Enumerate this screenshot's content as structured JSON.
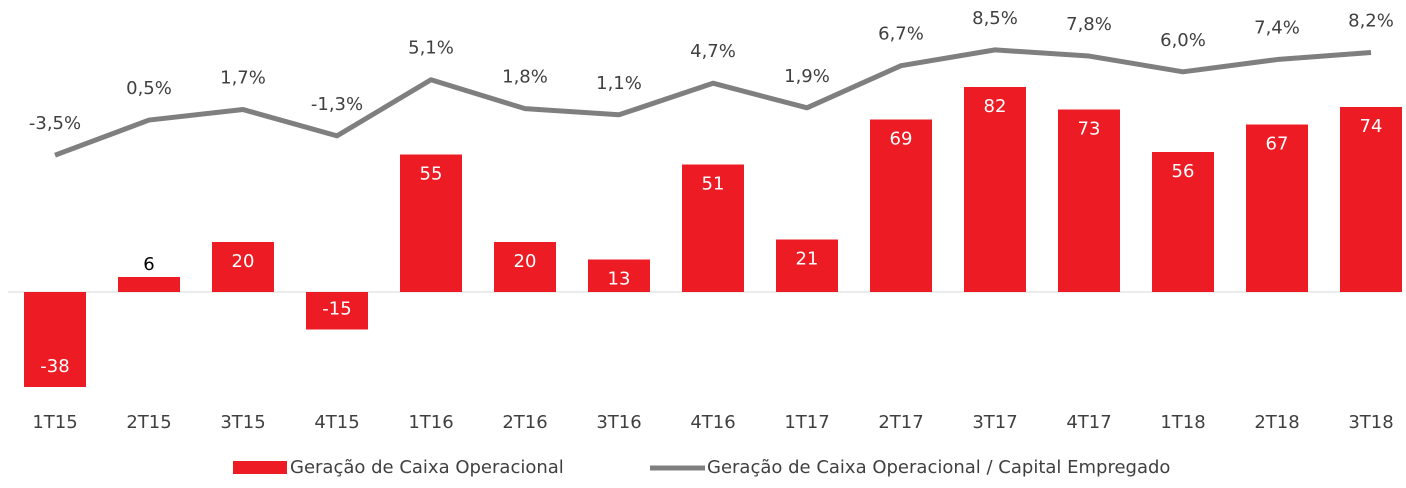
{
  "chart_data": {
    "type": "bar_line",
    "categories": [
      "1T15",
      "2T15",
      "3T15",
      "4T15",
      "1T16",
      "2T16",
      "3T16",
      "4T16",
      "1T17",
      "2T17",
      "3T17",
      "4T17",
      "1T18",
      "2T18",
      "3T18"
    ],
    "series": [
      {
        "name": "Geração de Caixa Operacional",
        "type": "bar",
        "color": "#ed1c24",
        "values": [
          -38,
          6,
          20,
          -15,
          55,
          20,
          13,
          51,
          21,
          69,
          82,
          73,
          56,
          67,
          74
        ]
      },
      {
        "name": "Geração de Caixa Operacional / Capital Empregado",
        "type": "line",
        "color": "#7f7f7f",
        "axis": "y2",
        "values": [
          -3.5,
          0.5,
          1.7,
          -1.3,
          5.1,
          1.8,
          1.1,
          4.7,
          1.9,
          6.7,
          8.5,
          7.8,
          6.0,
          7.4,
          8.2
        ],
        "value_labels": [
          "-3,5%",
          "0,5%",
          "1,7%",
          "-1,3%",
          "5,1%",
          "1,8%",
          "1,1%",
          "4,7%",
          "1,9%",
          "6,7%",
          "8,5%",
          "7,8%",
          "6,0%",
          "7,4%",
          "8,2%"
        ]
      }
    ],
    "ylim": [
      -40,
      100
    ],
    "y2lim": [
      -30.5,
      9.4
    ],
    "legend": "bottom"
  }
}
